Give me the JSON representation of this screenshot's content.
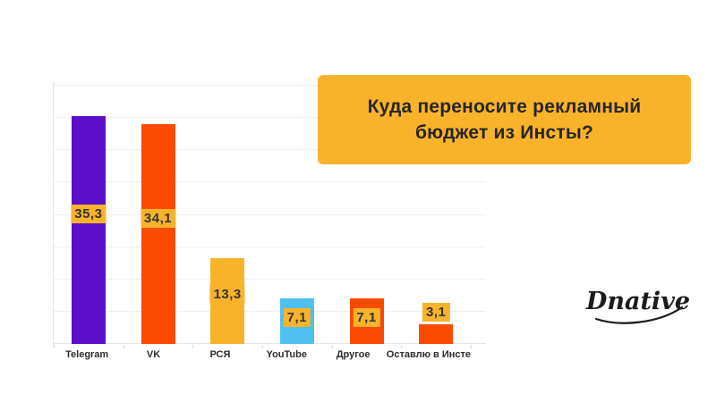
{
  "title_box": {
    "line1": "Куда переносите рекламный",
    "line2": "бюджет из Инсты?",
    "background": "#F9B32B",
    "text_color": "#262626"
  },
  "logo": {
    "text": "Dnative",
    "color": "#1C1C1C"
  },
  "chart_data": {
    "type": "bar",
    "title": "Куда переносите рекламный бюджет из Инсты?",
    "categories": [
      "Telegram",
      "VK",
      "РСЯ",
      "YouTube",
      "Другое",
      "Оставлю в Инсте"
    ],
    "values": [
      35.3,
      34.1,
      13.3,
      7.1,
      7.1,
      3.1
    ],
    "value_labels": [
      "35,3",
      "34,1",
      "13,3",
      "7,1",
      "7,1",
      "3,1"
    ],
    "bar_colors": [
      "#5B0FC8",
      "#FA4B02",
      "#F9B32B",
      "#4FC0EF",
      "#FA4B02",
      "#FA4B02"
    ],
    "value_badge_bg": "#F9B32B",
    "value_badge_text_color": "#333333",
    "xlabel": "",
    "ylabel": "",
    "ylim": [
      0,
      40
    ],
    "grid": true,
    "gridline_step": 5,
    "gridline_color": "#EFEFEF",
    "baseline_color": "#E6E6E6",
    "legend": "none"
  }
}
